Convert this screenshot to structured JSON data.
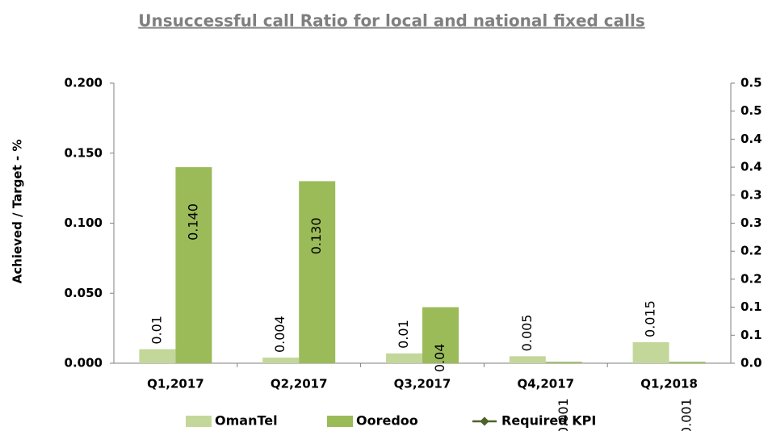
{
  "chart_data": {
    "type": "bar",
    "title": "Unsuccessful call Ratio for local and national fixed calls",
    "y_label": "Achieved / Target - %",
    "categories": [
      "Q1,2017",
      "Q2,2017",
      "Q3,2017",
      "Q4,2017",
      "Q1,2018"
    ],
    "series": [
      {
        "name": "OmanTel",
        "color": "#c4d79b",
        "values": [
          0.01,
          0.004,
          0.007,
          0.005,
          0.015
        ],
        "value_labels": [
          "0.01",
          "0.004",
          "0.01",
          "0.005",
          "0.015"
        ]
      },
      {
        "name": "Ooredoo",
        "color": "#9bbb59",
        "values": [
          0.14,
          0.13,
          0.04,
          0.001,
          0.001
        ],
        "value_labels": [
          "0.140",
          "0.130",
          "0.04",
          "0.001",
          "0.001"
        ]
      },
      {
        "name": "Required KPI",
        "color": "#4f6228",
        "type": "line",
        "axis": "y2",
        "values": [
          null,
          null,
          null,
          null,
          null
        ]
      }
    ],
    "ylim": [
      0,
      0.2
    ],
    "yticks": [
      {
        "value": 0,
        "label": "0.000"
      },
      {
        "value": 0.05,
        "label": "0.050"
      },
      {
        "value": 0.1,
        "label": "0.100"
      },
      {
        "value": 0.15,
        "label": "0.150"
      },
      {
        "value": 0.2,
        "label": "0.200"
      }
    ],
    "y2lim": [
      0,
      0.5
    ],
    "y2ticks": [
      {
        "value": 0,
        "label": "0.0"
      },
      {
        "value": 0.05,
        "label": "0.1"
      },
      {
        "value": 0.1,
        "label": "0.1"
      },
      {
        "value": 0.15,
        "label": "0.2"
      },
      {
        "value": 0.2,
        "label": "0.2"
      },
      {
        "value": 0.25,
        "label": "0.3"
      },
      {
        "value": 0.3,
        "label": "0.3"
      },
      {
        "value": 0.35,
        "label": "0.4"
      },
      {
        "value": 0.4,
        "label": "0.4"
      },
      {
        "value": 0.45,
        "label": "0.5"
      },
      {
        "value": 0.5,
        "label": "0.5"
      }
    ],
    "legend": "bottom"
  }
}
